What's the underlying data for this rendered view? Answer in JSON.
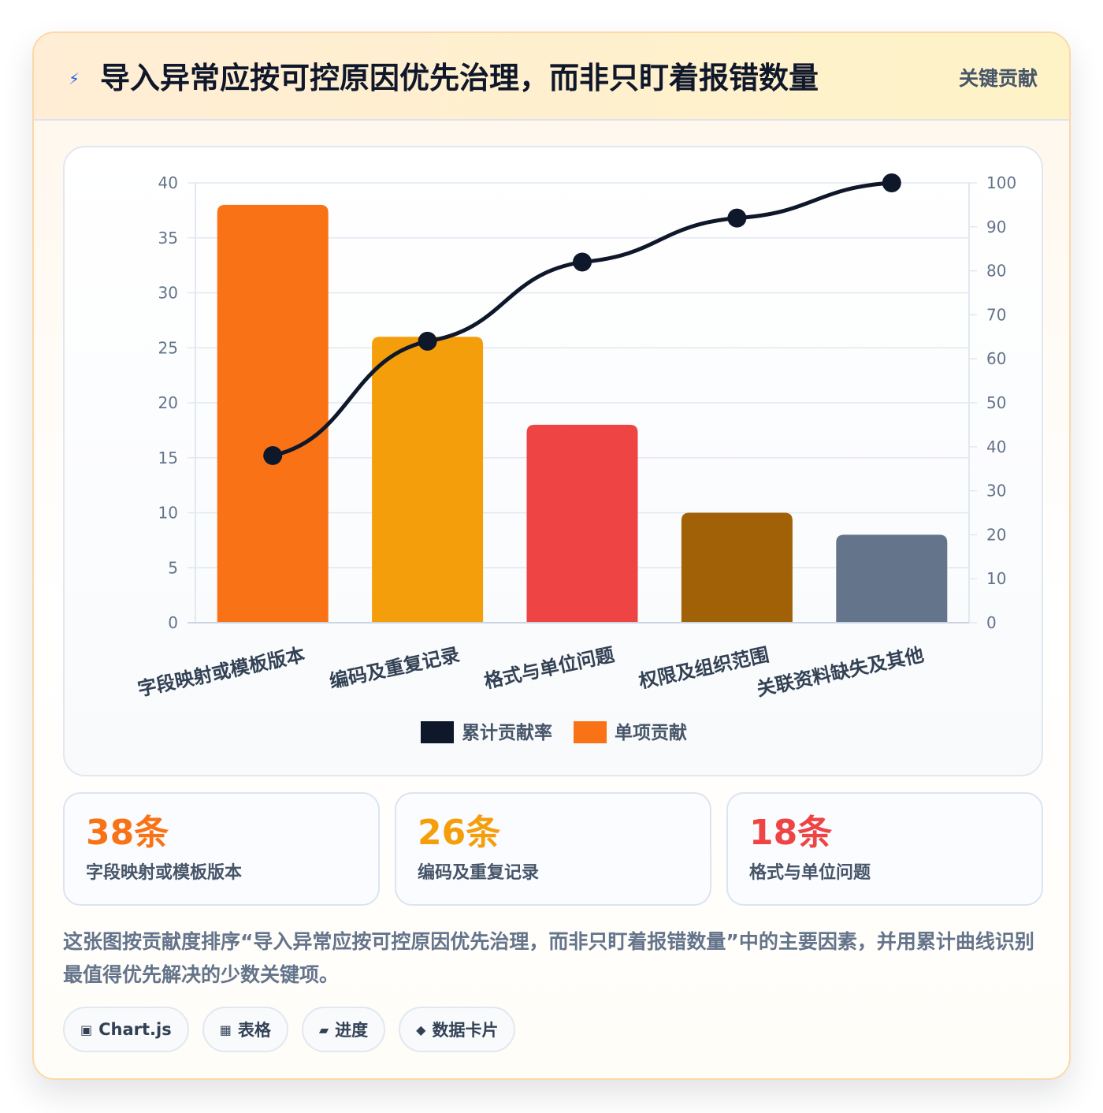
{
  "header": {
    "title": "导入异常应按可控原因优先治理，而非只盯着报错数量",
    "badge": "关键贡献",
    "icon": "lightning-icon"
  },
  "chart_data": {
    "type": "bar",
    "categories": [
      "字段映射或模板版本",
      "编码及重复记录",
      "格式与单位问题",
      "权限及组织范围",
      "关联资料缺失及其他"
    ],
    "series": [
      {
        "name": "单项贡献",
        "type": "bar",
        "axis": "left",
        "values": [
          38,
          26,
          18,
          10,
          8
        ],
        "colors": [
          "#f97316",
          "#f59e0b",
          "#ef4444",
          "#a16207",
          "#64748b"
        ]
      },
      {
        "name": "累计贡献率",
        "type": "line",
        "axis": "right",
        "values": [
          38,
          64,
          82,
          92,
          100
        ],
        "color": "#0f172a"
      }
    ],
    "y_left": {
      "min": 0,
      "max": 40,
      "ticks": [
        "0",
        "5",
        "10",
        "15",
        "20",
        "25",
        "30",
        "35",
        "40"
      ]
    },
    "y_right": {
      "min": 0,
      "max": 100,
      "ticks": [
        "0",
        "10",
        "20",
        "30",
        "40",
        "50",
        "60",
        "70",
        "80",
        "90",
        "100"
      ]
    },
    "legend": {
      "position": "bottom",
      "items": [
        {
          "label": "累计贡献率",
          "color": "#0f172a"
        },
        {
          "label": "单项贡献",
          "color": "#f97316"
        }
      ]
    },
    "grid": true
  },
  "stats": [
    {
      "value": "38条",
      "label": "字段映射或模板版本",
      "color": "#f97316"
    },
    {
      "value": "26条",
      "label": "编码及重复记录",
      "color": "#f59e0b"
    },
    {
      "value": "18条",
      "label": "格式与单位问题",
      "color": "#ef4444"
    }
  ],
  "description": "这张图按贡献度排序“导入异常应按可控原因优先治理，而非只盯着报错数量”中的主要因素，并用累计曲线识别最值得优先解决的少数关键项。",
  "chips": [
    {
      "icon": "▣",
      "label": "Chart.js"
    },
    {
      "icon": "▦",
      "label": "表格"
    },
    {
      "icon": "▰",
      "label": "进度"
    },
    {
      "icon": "◆",
      "label": "数据卡片"
    }
  ]
}
